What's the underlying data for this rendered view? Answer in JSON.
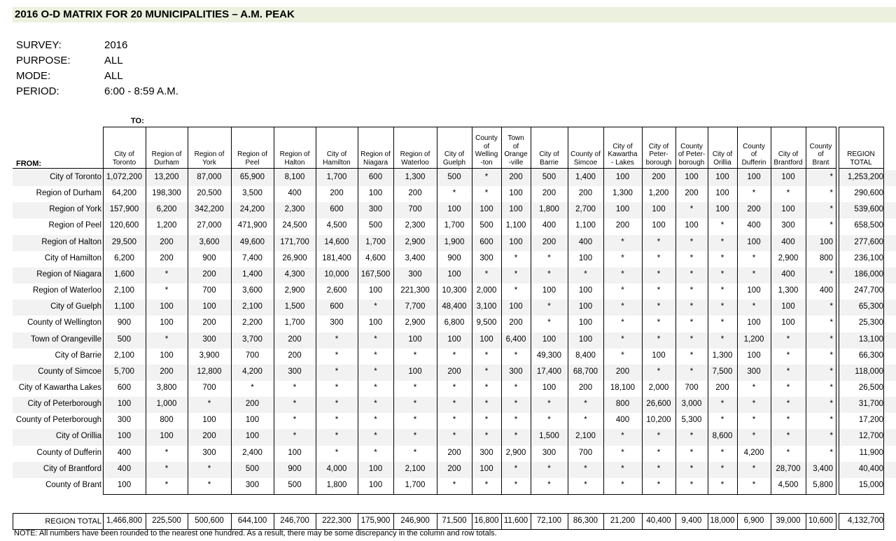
{
  "title": "2016 O-D MATRIX FOR 20 MUNICIPALITIES – A.M. PEAK",
  "meta": [
    {
      "key": "SURVEY:",
      "value": "2016"
    },
    {
      "key": "PURPOSE:",
      "value": "ALL"
    },
    {
      "key": "MODE:",
      "value": "ALL"
    },
    {
      "key": "PERIOD:",
      "value": "6:00 - 8:59 A.M."
    }
  ],
  "to_label": "TO:",
  "from_label": "FROM:",
  "columns": [
    [
      "City of",
      "Toronto"
    ],
    [
      "Region of",
      "Durham"
    ],
    [
      "Region of",
      "York"
    ],
    [
      "Region of",
      "Peel"
    ],
    [
      "Region of",
      "Halton"
    ],
    [
      "City of",
      "Hamilton"
    ],
    [
      "Region of",
      "Niagara"
    ],
    [
      "Region of",
      "Waterloo"
    ],
    [
      "City of",
      "Guelph"
    ],
    [
      "County",
      "of",
      "Welling",
      "-ton"
    ],
    [
      "Town",
      "of",
      "Orange",
      "-ville"
    ],
    [
      "City of",
      "Barrie"
    ],
    [
      "County of",
      "Simcoe"
    ],
    [
      "City of",
      "Kawartha",
      "- Lakes"
    ],
    [
      "City of",
      "Peter-",
      "borough"
    ],
    [
      "County",
      "of Peter-",
      "borough"
    ],
    [
      "City of",
      "Orillia"
    ],
    [
      "County",
      "of",
      "Dufferin"
    ],
    [
      "City of",
      "Brantford"
    ],
    [
      "County",
      "of",
      "Brant"
    ]
  ],
  "region_total_header": [
    "REGION",
    "TOTAL"
  ],
  "rows": [
    {
      "label": "City of Toronto",
      "values": [
        "1,072,200",
        "13,200",
        "87,000",
        "65,900",
        "8,100",
        "1,700",
        "600",
        "1,300",
        "500",
        "*",
        "200",
        "500",
        "1,400",
        "100",
        "200",
        "100",
        "100",
        "100",
        "100",
        "*"
      ],
      "total": "1,253,200"
    },
    {
      "label": "Region of Durham",
      "values": [
        "64,200",
        "198,300",
        "20,500",
        "3,500",
        "400",
        "200",
        "100",
        "200",
        "*",
        "*",
        "100",
        "200",
        "200",
        "1,300",
        "1,200",
        "200",
        "100",
        "*",
        "*",
        "*"
      ],
      "total": "290,600"
    },
    {
      "label": "Region of York",
      "values": [
        "157,900",
        "6,200",
        "342,200",
        "24,200",
        "2,300",
        "600",
        "300",
        "700",
        "100",
        "100",
        "100",
        "1,800",
        "2,700",
        "100",
        "100",
        "*",
        "100",
        "200",
        "100",
        "*"
      ],
      "total": "539,600"
    },
    {
      "label": "Region of Peel",
      "values": [
        "120,600",
        "1,200",
        "27,000",
        "471,900",
        "24,500",
        "4,500",
        "500",
        "2,300",
        "1,700",
        "500",
        "1,100",
        "400",
        "1,100",
        "200",
        "100",
        "100",
        "*",
        "400",
        "300",
        "*"
      ],
      "total": "658,500"
    },
    {
      "label": "Region of Halton",
      "values": [
        "29,500",
        "200",
        "3,600",
        "49,600",
        "171,700",
        "14,600",
        "1,700",
        "2,900",
        "1,900",
        "600",
        "100",
        "200",
        "400",
        "*",
        "*",
        "*",
        "*",
        "100",
        "400",
        "100"
      ],
      "total": "277,600"
    },
    {
      "label": "City of Hamilton",
      "values": [
        "6,200",
        "200",
        "900",
        "7,400",
        "26,900",
        "181,400",
        "4,600",
        "3,400",
        "900",
        "300",
        "*",
        "*",
        "100",
        "*",
        "*",
        "*",
        "*",
        "*",
        "2,900",
        "800"
      ],
      "total": "236,100"
    },
    {
      "label": "Region of Niagara",
      "values": [
        "1,600",
        "*",
        "200",
        "1,400",
        "4,300",
        "10,000",
        "167,500",
        "300",
        "100",
        "*",
        "*",
        "*",
        "*",
        "*",
        "*",
        "*",
        "*",
        "*",
        "400",
        "*"
      ],
      "total": "186,000"
    },
    {
      "label": "Region of Waterloo",
      "values": [
        "2,100",
        "*",
        "700",
        "3,600",
        "2,900",
        "2,600",
        "100",
        "221,300",
        "10,300",
        "2,000",
        "*",
        "100",
        "100",
        "*",
        "*",
        "*",
        "*",
        "100",
        "1,300",
        "400"
      ],
      "total": "247,700"
    },
    {
      "label": "City of Guelph",
      "values": [
        "1,100",
        "100",
        "100",
        "2,100",
        "1,500",
        "600",
        "*",
        "7,700",
        "48,400",
        "3,100",
        "100",
        "*",
        "100",
        "*",
        "*",
        "*",
        "*",
        "*",
        "100",
        "*"
      ],
      "total": "65,300"
    },
    {
      "label": "County of Wellington",
      "values": [
        "900",
        "100",
        "200",
        "2,200",
        "1,700",
        "300",
        "100",
        "2,900",
        "6,800",
        "9,500",
        "200",
        "*",
        "100",
        "*",
        "*",
        "*",
        "*",
        "100",
        "100",
        "*"
      ],
      "total": "25,300"
    },
    {
      "label": "Town of Orangeville",
      "values": [
        "500",
        "*",
        "300",
        "3,700",
        "200",
        "*",
        "*",
        "100",
        "100",
        "100",
        "6,400",
        "100",
        "100",
        "*",
        "*",
        "*",
        "*",
        "1,200",
        "*",
        "*"
      ],
      "total": "13,100"
    },
    {
      "label": "City of Barrie",
      "values": [
        "2,100",
        "100",
        "3,900",
        "700",
        "200",
        "*",
        "*",
        "*",
        "*",
        "*",
        "*",
        "49,300",
        "8,400",
        "*",
        "100",
        "*",
        "1,300",
        "100",
        "*",
        "*"
      ],
      "total": "66,300"
    },
    {
      "label": "County of Simcoe",
      "values": [
        "5,700",
        "200",
        "12,800",
        "4,200",
        "300",
        "*",
        "*",
        "100",
        "200",
        "*",
        "300",
        "17,400",
        "68,700",
        "200",
        "*",
        "*",
        "7,500",
        "300",
        "*",
        "*"
      ],
      "total": "118,000"
    },
    {
      "label": "City of Kawartha Lakes",
      "values": [
        "600",
        "3,800",
        "700",
        "*",
        "*",
        "*",
        "*",
        "*",
        "*",
        "*",
        "*",
        "100",
        "200",
        "18,100",
        "2,000",
        "700",
        "200",
        "*",
        "*",
        "*"
      ],
      "total": "26,500"
    },
    {
      "label": "City of Peterborough",
      "values": [
        "100",
        "1,000",
        "*",
        "200",
        "*",
        "*",
        "*",
        "*",
        "*",
        "*",
        "*",
        "*",
        "*",
        "800",
        "26,600",
        "3,000",
        "*",
        "*",
        "*",
        "*"
      ],
      "total": "31,700"
    },
    {
      "label": "County of Peterborough",
      "values": [
        "300",
        "800",
        "100",
        "100",
        "*",
        "*",
        "*",
        "*",
        "*",
        "*",
        "*",
        "*",
        "*",
        "400",
        "10,200",
        "5,300",
        "*",
        "*",
        "*",
        "*"
      ],
      "total": "17,200"
    },
    {
      "label": "City of Orillia",
      "values": [
        "100",
        "100",
        "200",
        "100",
        "*",
        "*",
        "*",
        "*",
        "*",
        "*",
        "*",
        "1,500",
        "2,100",
        "*",
        "*",
        "*",
        "8,600",
        "*",
        "*",
        "*"
      ],
      "total": "12,700"
    },
    {
      "label": "County of Dufferin",
      "values": [
        "400",
        "*",
        "300",
        "2,400",
        "100",
        "*",
        "*",
        "*",
        "200",
        "300",
        "2,900",
        "300",
        "700",
        "*",
        "*",
        "*",
        "*",
        "4,200",
        "*",
        "*"
      ],
      "total": "11,900"
    },
    {
      "label": "City of Brantford",
      "values": [
        "400",
        "*",
        "*",
        "500",
        "900",
        "4,000",
        "100",
        "2,100",
        "200",
        "100",
        "*",
        "*",
        "*",
        "*",
        "*",
        "*",
        "*",
        "*",
        "28,700",
        "3,400"
      ],
      "total": "40,400"
    },
    {
      "label": "County of Brant",
      "values": [
        "100",
        "*",
        "*",
        "300",
        "500",
        "1,800",
        "100",
        "1,700",
        "*",
        "*",
        "*",
        "*",
        "*",
        "*",
        "*",
        "*",
        "*",
        "*",
        "4,500",
        "5,800"
      ],
      "total": "15,000"
    }
  ],
  "region_total_row": {
    "label": "REGION TOTAL",
    "values": [
      "1,466,800",
      "225,500",
      "500,600",
      "644,100",
      "246,700",
      "222,300",
      "175,900",
      "246,900",
      "71,500",
      "16,800",
      "11,600",
      "72,100",
      "86,300",
      "21,200",
      "40,400",
      "9,400",
      "18,000",
      "6,900",
      "39,000",
      "10,600"
    ],
    "total": "4,132,700"
  },
  "note": "NOTE: All numbers have been rounded to the nearest one hundred. As a result, there may be some discrepancy in the column and row totals."
}
